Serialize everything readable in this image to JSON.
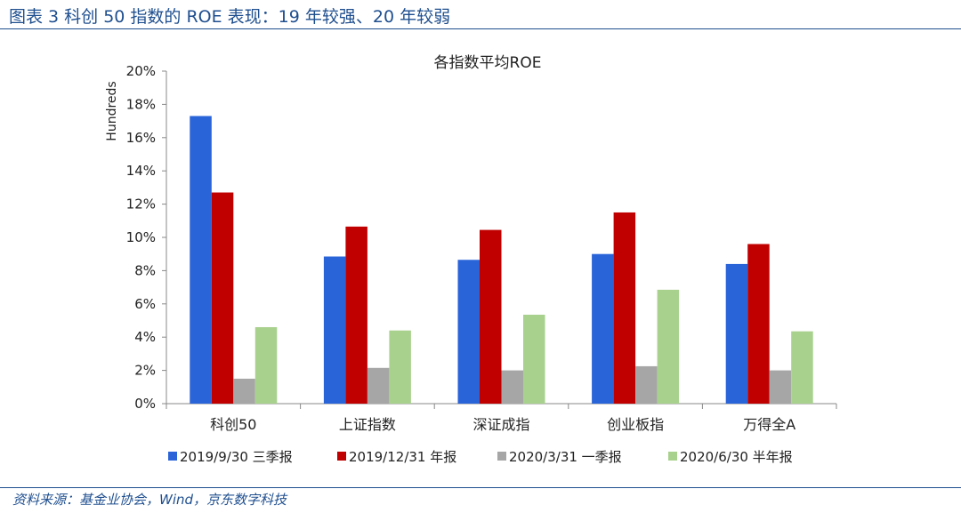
{
  "figure": {
    "title": "图表 3 科创 50 指数的 ROE 表现：19 年较强、20 年较弱",
    "source": "资料来源：基金业协会，Wind，京东数字科技"
  },
  "colors": {
    "accent": "#1f4f8f",
    "series": [
      "#2a64d9",
      "#c00000",
      "#a6a6a6",
      "#a9d18e"
    ]
  },
  "chart_data": {
    "type": "bar",
    "title": "各指数平均ROE",
    "ylabel": "Hundreds",
    "xlabel": "",
    "ylim": [
      0,
      20
    ],
    "yticks": [
      0,
      2,
      4,
      6,
      8,
      10,
      12,
      14,
      16,
      18,
      20
    ],
    "ytick_format": "%",
    "grid": false,
    "legend_position": "bottom",
    "categories": [
      "科创50",
      "上证指数",
      "深证成指",
      "创业板指",
      "万得全A"
    ],
    "series": [
      {
        "name": "2019/9/30 三季报",
        "values": [
          17.3,
          8.85,
          8.65,
          9.0,
          8.4
        ]
      },
      {
        "name": "2019/12/31 年报",
        "values": [
          12.7,
          10.65,
          10.45,
          11.5,
          9.6
        ]
      },
      {
        "name": "2020/3/31 一季报",
        "values": [
          1.5,
          2.15,
          2.0,
          2.25,
          2.0
        ]
      },
      {
        "name": "2020/6/30 半年报",
        "values": [
          4.6,
          4.4,
          5.35,
          6.85,
          4.35
        ]
      }
    ]
  }
}
